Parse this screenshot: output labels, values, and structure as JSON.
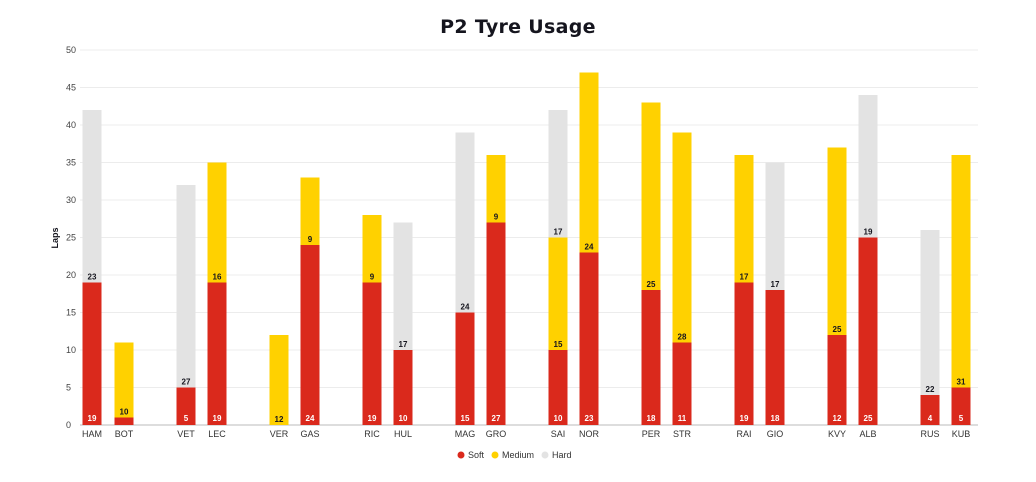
{
  "chart_data": {
    "type": "bar",
    "stacked": true,
    "title": "P2 Tyre Usage",
    "ylabel": "Laps",
    "xlabel": "",
    "ylim": [
      0,
      50
    ],
    "yticks": [
      0,
      5,
      10,
      15,
      20,
      25,
      30,
      35,
      40,
      45,
      50
    ],
    "grid": true,
    "legend_position": "bottom",
    "colors": {
      "Soft": "#da291c",
      "Medium": "#ffd100",
      "Hard": "#e3e3e3"
    },
    "legend": [
      "Soft",
      "Medium",
      "Hard"
    ],
    "categories": [
      "HAM",
      "BOT",
      "VET",
      "LEC",
      "VER",
      "GAS",
      "RIC",
      "HUL",
      "MAG",
      "GRO",
      "SAI",
      "NOR",
      "PER",
      "STR",
      "RAI",
      "GIO",
      "KVY",
      "ALB",
      "RUS",
      "KUB"
    ],
    "bars": [
      {
        "driver": "HAM",
        "segments": [
          {
            "compound": "Soft",
            "value": 19,
            "label": "19"
          },
          {
            "compound": "Hard",
            "value": 23,
            "label": "23"
          }
        ]
      },
      {
        "driver": "BOT",
        "segments": [
          {
            "compound": "Soft",
            "value": 1,
            "label": ""
          },
          {
            "compound": "Medium",
            "value": 10,
            "label": "10"
          }
        ]
      },
      {
        "driver": "VET",
        "segments": [
          {
            "compound": "Soft",
            "value": 5,
            "label": "5"
          },
          {
            "compound": "Hard",
            "value": 27,
            "label": "27"
          }
        ]
      },
      {
        "driver": "LEC",
        "segments": [
          {
            "compound": "Soft",
            "value": 19,
            "label": "19"
          },
          {
            "compound": "Medium",
            "value": 16,
            "label": "16"
          }
        ]
      },
      {
        "driver": "VER",
        "segments": [
          {
            "compound": "Medium",
            "value": 12,
            "label": "12"
          }
        ]
      },
      {
        "driver": "GAS",
        "segments": [
          {
            "compound": "Soft",
            "value": 24,
            "label": "24"
          },
          {
            "compound": "Medium",
            "value": 9,
            "label": "9"
          }
        ]
      },
      {
        "driver": "RIC",
        "segments": [
          {
            "compound": "Soft",
            "value": 19,
            "label": "19"
          },
          {
            "compound": "Medium",
            "value": 9,
            "label": "9"
          }
        ]
      },
      {
        "driver": "HUL",
        "segments": [
          {
            "compound": "Soft",
            "value": 10,
            "label": "10"
          },
          {
            "compound": "Hard",
            "value": 17,
            "label": "17"
          }
        ]
      },
      {
        "driver": "MAG",
        "segments": [
          {
            "compound": "Soft",
            "value": 15,
            "label": "15"
          },
          {
            "compound": "Hard",
            "value": 24,
            "label": "24"
          }
        ]
      },
      {
        "driver": "GRO",
        "segments": [
          {
            "compound": "Soft",
            "value": 27,
            "label": "27"
          },
          {
            "compound": "Medium",
            "value": 9,
            "label": "9"
          }
        ]
      },
      {
        "driver": "SAI",
        "segments": [
          {
            "compound": "Soft",
            "value": 10,
            "label": "10"
          },
          {
            "compound": "Medium",
            "value": 15,
            "label": "15"
          },
          {
            "compound": "Hard",
            "value": 17,
            "label": "17"
          }
        ]
      },
      {
        "driver": "NOR",
        "segments": [
          {
            "compound": "Soft",
            "value": 23,
            "label": "23"
          },
          {
            "compound": "Medium",
            "value": 24,
            "label": "24"
          }
        ]
      },
      {
        "driver": "PER",
        "segments": [
          {
            "compound": "Soft",
            "value": 18,
            "label": "18"
          },
          {
            "compound": "Medium",
            "value": 25,
            "label": "25"
          }
        ]
      },
      {
        "driver": "STR",
        "segments": [
          {
            "compound": "Soft",
            "value": 11,
            "label": "11"
          },
          {
            "compound": "Medium",
            "value": 28,
            "label": "28"
          }
        ]
      },
      {
        "driver": "RAI",
        "segments": [
          {
            "compound": "Soft",
            "value": 19,
            "label": "19"
          },
          {
            "compound": "Medium",
            "value": 17,
            "label": "17"
          }
        ]
      },
      {
        "driver": "GIO",
        "segments": [
          {
            "compound": "Soft",
            "value": 18,
            "label": "18"
          },
          {
            "compound": "Hard",
            "value": 17,
            "label": "17"
          }
        ]
      },
      {
        "driver": "KVY",
        "segments": [
          {
            "compound": "Soft",
            "value": 12,
            "label": "12"
          },
          {
            "compound": "Medium",
            "value": 25,
            "label": "25"
          }
        ]
      },
      {
        "driver": "ALB",
        "segments": [
          {
            "compound": "Soft",
            "value": 25,
            "label": "25"
          },
          {
            "compound": "Hard",
            "value": 19,
            "label": "19"
          }
        ]
      },
      {
        "driver": "RUS",
        "segments": [
          {
            "compound": "Soft",
            "value": 4,
            "label": "4"
          },
          {
            "compound": "Hard",
            "value": 22,
            "label": "22"
          }
        ]
      },
      {
        "driver": "KUB",
        "segments": [
          {
            "compound": "Soft",
            "value": 5,
            "label": "5"
          },
          {
            "compound": "Medium",
            "value": 31,
            "label": "31"
          }
        ]
      }
    ]
  }
}
